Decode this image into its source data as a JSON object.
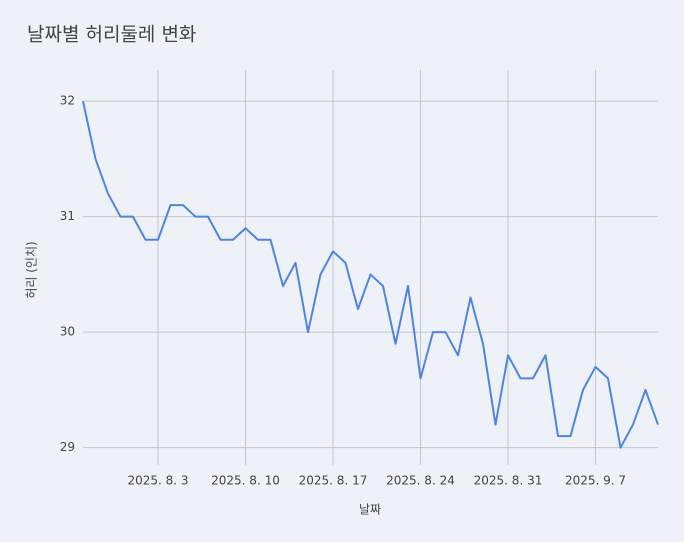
{
  "chart_data": {
    "type": "line",
    "title": "날짜별 허리둘레 변화",
    "x_label": "날짜",
    "y_label": "허리 (인치)",
    "x": [
      "2025-07-28",
      "2025-07-29",
      "2025-07-30",
      "2025-07-31",
      "2025-08-01",
      "2025-08-02",
      "2025-08-03",
      "2025-08-04",
      "2025-08-05",
      "2025-08-06",
      "2025-08-07",
      "2025-08-08",
      "2025-08-09",
      "2025-08-10",
      "2025-08-11",
      "2025-08-12",
      "2025-08-13",
      "2025-08-14",
      "2025-08-15",
      "2025-08-16",
      "2025-08-17",
      "2025-08-18",
      "2025-08-19",
      "2025-08-20",
      "2025-08-21",
      "2025-08-22",
      "2025-08-23",
      "2025-08-24",
      "2025-08-25",
      "2025-08-26",
      "2025-08-27",
      "2025-08-28",
      "2025-08-29",
      "2025-08-30",
      "2025-08-31",
      "2025-09-01",
      "2025-09-02",
      "2025-09-03",
      "2025-09-04",
      "2025-09-05",
      "2025-09-06",
      "2025-09-07",
      "2025-09-08",
      "2025-09-09",
      "2025-09-10",
      "2025-09-11",
      "2025-09-12"
    ],
    "values": [
      32.0,
      31.5,
      31.2,
      31.0,
      31.0,
      30.8,
      30.8,
      31.1,
      31.1,
      31.0,
      31.0,
      30.8,
      30.8,
      30.9,
      30.8,
      30.8,
      30.4,
      30.6,
      30.0,
      30.5,
      30.7,
      30.6,
      30.2,
      30.5,
      30.4,
      29.9,
      30.4,
      29.6,
      30.0,
      30.0,
      29.8,
      30.3,
      29.9,
      29.2,
      29.8,
      29.6,
      29.6,
      29.8,
      29.1,
      29.1,
      29.5,
      29.7,
      29.6,
      29.0,
      29.2,
      29.5,
      29.2
    ],
    "color": "#4a86e8",
    "xlim": [
      "2025-07-28",
      "2025-09-12"
    ],
    "xticks": [
      {
        "value": "2025-08-03",
        "label": "2025. 8. 3"
      },
      {
        "value": "2025-08-10",
        "label": "2025. 8. 10"
      },
      {
        "value": "2025-08-17",
        "label": "2025. 8. 17"
      },
      {
        "value": "2025-08-24",
        "label": "2025. 8. 24"
      },
      {
        "value": "2025-08-31",
        "label": "2025. 8. 31"
      },
      {
        "value": "2025-09-07",
        "label": "2025. 9. 7"
      }
    ],
    "ylim": [
      28.85,
      32.27
    ],
    "yticks": [
      29,
      30,
      31,
      32
    ],
    "grid": true
  }
}
